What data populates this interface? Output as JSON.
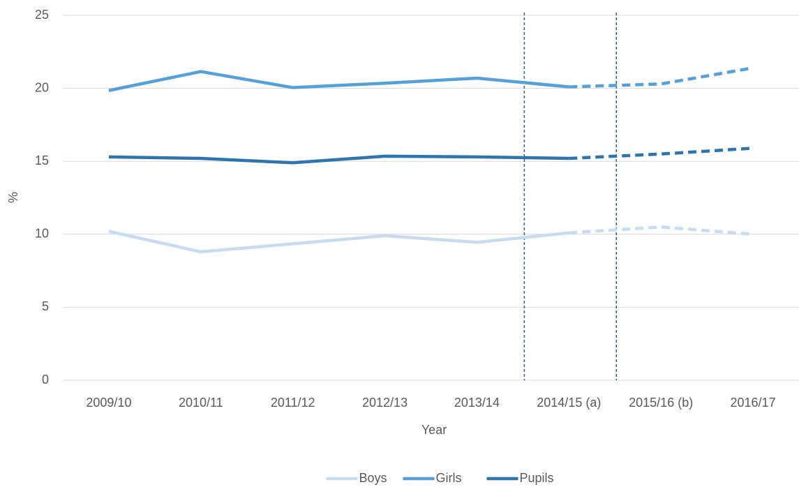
{
  "chart_data": {
    "type": "line",
    "x_label": "Year",
    "y_label": "%",
    "categories": [
      "2009/10",
      "2010/11",
      "2011/12",
      "2012/13",
      "2013/14",
      "2014/15 (a)",
      "2015/16 (b)",
      "2016/17"
    ],
    "series": [
      {
        "name": "Boys",
        "color": "#c6dcf0",
        "values": [
          10.2,
          8.8,
          9.35,
          9.9,
          9.45,
          10.1,
          10.5,
          10.0
        ]
      },
      {
        "name": "Girls",
        "color": "#55a0d8",
        "values": [
          19.85,
          21.15,
          20.05,
          20.35,
          20.7,
          20.1,
          20.3,
          21.4
        ]
      },
      {
        "name": "Pupils",
        "color": "#2e75b0",
        "values": [
          15.3,
          15.2,
          14.9,
          15.35,
          15.3,
          15.2,
          15.5,
          15.9
        ]
      }
    ],
    "dashed_from": 5,
    "vlines": [
      5,
      6
    ],
    "ylim": [
      0,
      25
    ],
    "yticks": [
      0,
      5,
      10,
      15,
      20,
      25
    ],
    "grid": true,
    "legend": "bottom"
  }
}
